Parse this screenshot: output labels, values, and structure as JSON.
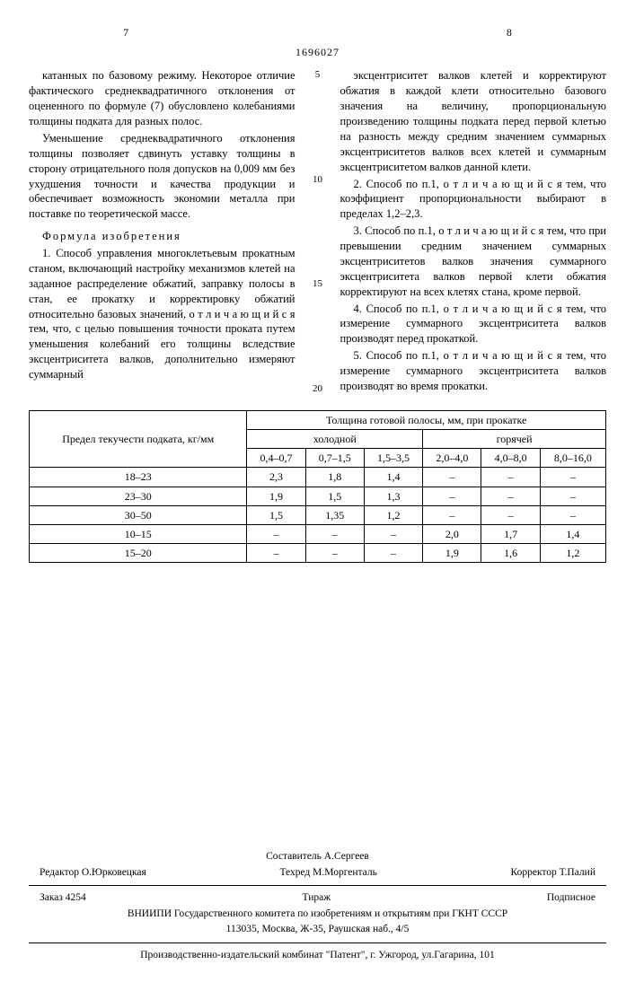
{
  "pageLeft": "7",
  "pageRight": "8",
  "patentNo": "1696027",
  "lineNumbers": [
    "5",
    "10",
    "15",
    "20"
  ],
  "left": {
    "p1": "катанных по базовому режиму. Некоторое отличие фактического среднеквадратичного отклонения от оцененного по формуле (7) обусловлено колебаниями толщины подката для разных полос.",
    "p2": "Уменьшение среднеквадратичного отклонения толщины позволяет сдвинуть уставку толщины в сторону отрицательного поля допусков на 0,009 мм без ухудшения точности и качества продукции и обеспечивает возможность экономии металла при поставке по теоретической массе.",
    "fhead": "Формула изобретения",
    "p3": "1. Способ управления многоклетьевым прокатным станом, включающий настройку механизмов клетей на заданное распределение обжатий, заправку полосы в стан, ее прокатку и корректировку обжатий относительно базовых значений, о т л и ч а ю щ и й с я  тем, что, с целью повышения точности проката путем уменьшения колебаний его толщины вследствие эксцентриситета валков, дополнительно измеряют суммарный"
  },
  "right": {
    "p1": "эксцентриситет валков клетей и корректируют обжатия в каждой клети относительно базового значения на величину, пропорциональную произведению толщины подката перед первой клетью на разность между средним значением суммарных эксцентриситетов валков всех клетей и суммарным эксцентриситетом валков данной клети.",
    "p2": "2. Способ по п.1, о т л и ч а ю щ и й с я тем, что коэффициент пропорциональности выбирают в пределах 1,2–2,3.",
    "p3": "3. Способ по п.1, о т л и ч а ю щ и й с я тем, что при превышении средним значением суммарных эксцентриситетов валков значения суммарного эксцентриситета валков первой клети обжатия корректируют на всех клетях стана, кроме первой.",
    "p4": "4. Способ по п.1, о т л и ч а ю щ и й с я тем, что измерение суммарного эксцентриситета валков производят перед прокаткой.",
    "p5": "5. Способ по п.1, о т л и ч а ю щ и й с я тем, что измерение суммарного эксцентриситета валков производят во время прокатки."
  },
  "table": {
    "rowHeaderTop": "Предел текучести подката, кг/мм",
    "spanHeader": "Толщина готовой полосы, мм, при прокатке",
    "coldGroup": "холодной",
    "hotGroup": "горячей",
    "cols": [
      "0,4–0,7",
      "0,7–1,5",
      "1,5–3,5",
      "2,0–4,0",
      "4,0–8,0",
      "8,0–16,0"
    ],
    "rows": [
      {
        "h": "18–23",
        "c": [
          "2,3",
          "1,8",
          "1,4",
          "–",
          "–",
          "–"
        ]
      },
      {
        "h": "23–30",
        "c": [
          "1,9",
          "1,5",
          "1,3",
          "–",
          "–",
          "–"
        ]
      },
      {
        "h": "30–50",
        "c": [
          "1,5",
          "1,35",
          "1,2",
          "–",
          "–",
          "–"
        ]
      },
      {
        "h": "10–15",
        "c": [
          "–",
          "–",
          "–",
          "2,0",
          "1,7",
          "1,4"
        ]
      },
      {
        "h": "15–20",
        "c": [
          "–",
          "–",
          "–",
          "1,9",
          "1,6",
          "1,2"
        ]
      }
    ]
  },
  "colophon": {
    "compiler": "Составитель  А.Сергеев",
    "editor": "Редактор  О.Юрковецкая",
    "tehred": "Техред М.Моргенталь",
    "corrector": "Корректор  Т.Палий",
    "order": "Заказ  4254",
    "tirazh": "Тираж",
    "subscr": "Подписное",
    "org1": "ВНИИПИ Государственного комитета по изобретениям и открытиям при ГКНТ СССР",
    "org2": "113035, Москва, Ж-35, Раушская наб., 4/5",
    "press": "Производственно-издательский комбинат \"Патент\", г. Ужгород, ул.Гагарина, 101"
  }
}
